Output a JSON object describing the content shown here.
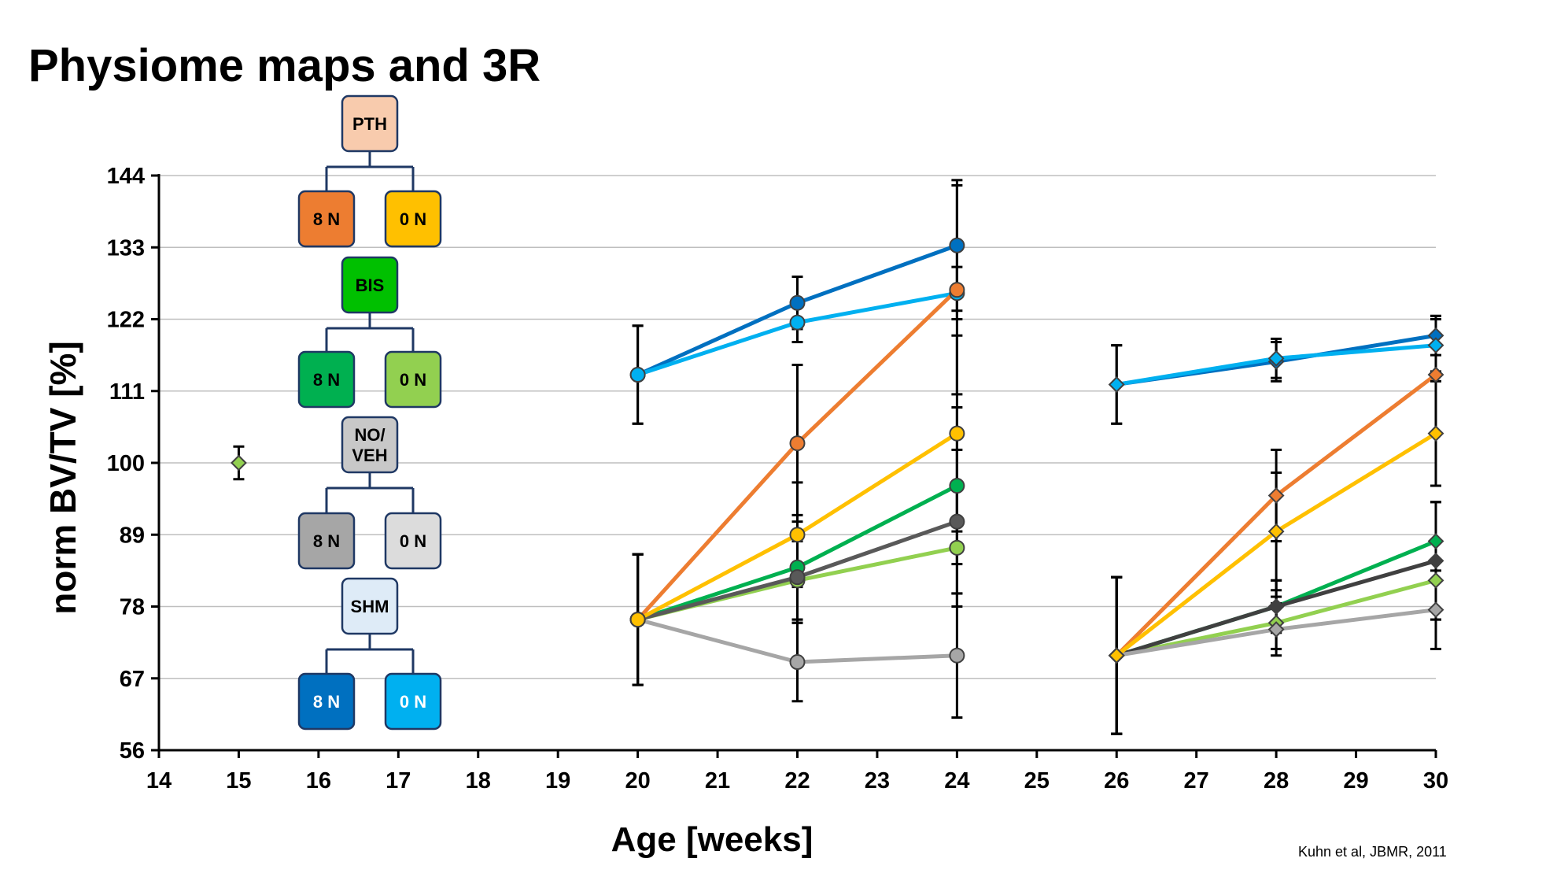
{
  "slide": {
    "title": "Physiome maps and 3R",
    "citation": "Kuhn et al, JBMR, 2011"
  },
  "chart_data": {
    "type": "line",
    "title": "",
    "xlabel": "Age [weeks]",
    "ylabel": "norm BV/TV [%]",
    "xlim": [
      14,
      30
    ],
    "ylim": [
      56,
      144
    ],
    "xticks": [
      14,
      15,
      16,
      17,
      18,
      19,
      20,
      21,
      22,
      23,
      24,
      25,
      26,
      27,
      28,
      29,
      30
    ],
    "yticks": [
      56,
      67,
      78,
      89,
      100,
      111,
      122,
      133,
      144
    ],
    "grid": "horizontal",
    "baseline": {
      "x": 15,
      "y": 100,
      "err": 2.5,
      "marker": "diamond",
      "color": "#92d050"
    },
    "series": [
      {
        "name": "PTH 8 N",
        "color": "#0070c0",
        "marker": "circle",
        "x": [
          20,
          22,
          24
        ],
        "y": [
          113.5,
          124.5,
          133.3
        ],
        "err": [
          7.5,
          4,
          10
        ]
      },
      {
        "name": "PTH 0 N",
        "color": "#00b0f0",
        "marker": "circle",
        "x": [
          20,
          22,
          24
        ],
        "y": [
          113.5,
          121.5,
          126
        ],
        "err": [
          7.5,
          3,
          4
        ]
      },
      {
        "name": "BIS 8 N",
        "color": "#00b050",
        "marker": "circle",
        "x": [
          20,
          22,
          24
        ],
        "y": [
          76,
          84,
          96.5
        ],
        "err": [
          10,
          8,
          12
        ]
      },
      {
        "name": "BIS 0 N",
        "color": "#92d050",
        "marker": "circle",
        "x": [
          20,
          22,
          24
        ],
        "y": [
          76,
          82,
          87
        ],
        "err": [
          10,
          6,
          9
        ]
      },
      {
        "name": "NO/VEH 8 N",
        "color": "#595959",
        "marker": "circle",
        "x": [
          20,
          22,
          24
        ],
        "y": [
          76,
          82.5,
          91
        ],
        "err": [
          10,
          7,
          11
        ]
      },
      {
        "name": "NO/VEH 0 N",
        "color": "#a6a6a6",
        "marker": "circle",
        "x": [
          20,
          22,
          24
        ],
        "y": [
          76,
          69.5,
          70.5
        ],
        "err": [
          10,
          6,
          9.5
        ]
      },
      {
        "name": "SHM 8 N",
        "color": "#ed7d31",
        "marker": "circle",
        "x": [
          20,
          22,
          24
        ],
        "y": [
          76,
          103,
          126.5
        ],
        "err": [
          10,
          12,
          16
        ]
      },
      {
        "name": "SHM 0 N",
        "color": "#ffc000",
        "marker": "circle",
        "x": [
          20,
          22,
          24
        ],
        "y": [
          76,
          89,
          104.5
        ],
        "err": [
          10,
          8,
          15
        ]
      },
      {
        "name": "PTH 8 N late",
        "color": "#0070c0",
        "marker": "diamond",
        "x": [
          26,
          28,
          30
        ],
        "y": [
          112,
          115.5,
          119.5
        ],
        "err": [
          6,
          3,
          3
        ]
      },
      {
        "name": "PTH 0 N late",
        "color": "#00b0f0",
        "marker": "diamond",
        "x": [
          26,
          28,
          30
        ],
        "y": [
          112,
          116,
          118
        ],
        "err": [
          6,
          3,
          4
        ]
      },
      {
        "name": "BIS 8 N late",
        "color": "#00b050",
        "marker": "diamond",
        "x": [
          26,
          28,
          30
        ],
        "y": [
          70.5,
          78,
          88
        ],
        "err": [
          12,
          4,
          6
        ]
      },
      {
        "name": "BIS 0 N late",
        "color": "#92d050",
        "marker": "diamond",
        "x": [
          26,
          28,
          30
        ],
        "y": [
          70.5,
          75.5,
          82
        ],
        "err": [
          12,
          4,
          6
        ]
      },
      {
        "name": "NO/VEH 8 N late",
        "color": "#404040",
        "marker": "diamond",
        "x": [
          26,
          28,
          30
        ],
        "y": [
          70.5,
          78,
          85
        ],
        "err": [
          12,
          4,
          9
        ]
      },
      {
        "name": "NO/VEH 0 N late",
        "color": "#a6a6a6",
        "marker": "diamond",
        "x": [
          26,
          28,
          30
        ],
        "y": [
          70.5,
          74.5,
          77.5
        ],
        "err": [
          12,
          4,
          6
        ]
      },
      {
        "name": "SHM 8 N late",
        "color": "#ed7d31",
        "marker": "diamond",
        "x": [
          26,
          28,
          30
        ],
        "y": [
          70.5,
          95,
          113.5
        ],
        "err": [
          12,
          7,
          9
        ]
      },
      {
        "name": "SHM 0 N late",
        "color": "#ffc000",
        "marker": "diamond",
        "x": [
          26,
          28,
          30
        ],
        "y": [
          70.5,
          89.5,
          104.5
        ],
        "err": [
          12,
          9,
          8
        ]
      }
    ],
    "tree": [
      {
        "label": "PTH",
        "fill": "#f8cbad",
        "text": "#000000",
        "children": [
          {
            "label": "8 N",
            "fill": "#ed7d31",
            "text": "#000000"
          },
          {
            "label": "0 N",
            "fill": "#ffc000",
            "text": "#000000"
          }
        ]
      },
      {
        "label": "BIS",
        "fill": "#00c000",
        "text": "#000000",
        "children": [
          {
            "label": "8 N",
            "fill": "#00b050",
            "text": "#000000"
          },
          {
            "label": "0 N",
            "fill": "#92d050",
            "text": "#000000"
          }
        ]
      },
      {
        "label": "NO/\nVEH",
        "fill": "#c8c8c8",
        "text": "#000000",
        "children": [
          {
            "label": "8 N",
            "fill": "#a6a6a6",
            "text": "#000000"
          },
          {
            "label": "0 N",
            "fill": "#dcdcdc",
            "text": "#000000"
          }
        ]
      },
      {
        "label": "SHM",
        "fill": "#deebf7",
        "text": "#000000",
        "children": [
          {
            "label": "8 N",
            "fill": "#0070c0",
            "text": "#ffffff"
          },
          {
            "label": "0 N",
            "fill": "#00b0f0",
            "text": "#ffffff"
          }
        ]
      }
    ]
  }
}
